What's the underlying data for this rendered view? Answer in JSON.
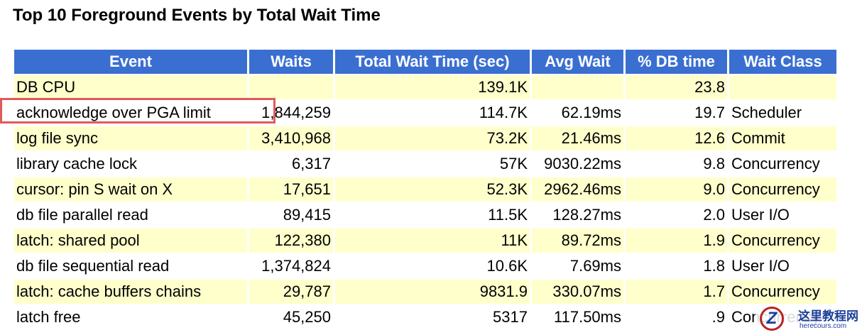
{
  "title": "Top 10 Foreground Events by Total Wait Time",
  "table": {
    "columns": [
      "Event",
      "Waits",
      "Total Wait Time (sec)",
      "Avg Wait",
      "% DB time",
      "Wait Class"
    ],
    "rows": [
      [
        "DB CPU",
        null,
        "139.1K",
        null,
        "23.8",
        null
      ],
      [
        "acknowledge over PGA limit",
        "1,844,259",
        "114.7K",
        "62.19ms",
        "19.7",
        "Scheduler"
      ],
      [
        "log file sync",
        "3,410,968",
        "73.2K",
        "21.46ms",
        "12.6",
        "Commit"
      ],
      [
        "library cache lock",
        "6,317",
        "57K",
        "9030.22ms",
        "9.8",
        "Concurrency"
      ],
      [
        "cursor: pin S wait on X",
        "17,651",
        "52.3K",
        "2962.46ms",
        "9.0",
        "Concurrency"
      ],
      [
        "db file parallel read",
        "89,415",
        "11.5K",
        "128.27ms",
        "2.0",
        "User I/O"
      ],
      [
        "latch: shared pool",
        "122,380",
        "11K",
        "89.72ms",
        "1.9",
        "Concurrency"
      ],
      [
        "db file sequential read",
        "1,374,824",
        "10.6K",
        "7.69ms",
        "1.8",
        "User I/O"
      ],
      [
        "latch: cache buffers chains",
        "29,787",
        "9831.9",
        "330.07ms",
        "1.7",
        "Concurrency"
      ],
      [
        "latch free",
        "45,250",
        "5317",
        "117.50ms",
        ".9",
        "Concurrency"
      ]
    ]
  },
  "watermark": {
    "name": "这里教程网",
    "url": "herecours.com"
  }
}
